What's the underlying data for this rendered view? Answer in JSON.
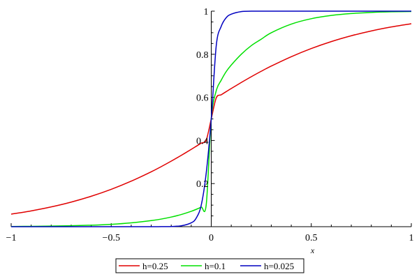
{
  "chart_data": {
    "type": "line",
    "title": "",
    "xlabel": "x",
    "ylabel": "",
    "xlim": [
      -1,
      1
    ],
    "ylim": [
      0,
      1
    ],
    "x_ticks": [
      {
        "value": -1,
        "label": "−1"
      },
      {
        "value": -0.5,
        "label": "−0.5"
      },
      {
        "value": 0,
        "label": "0"
      },
      {
        "value": 0.5,
        "label": "0.5"
      },
      {
        "value": 1,
        "label": "1"
      }
    ],
    "y_ticks": [
      {
        "value": 0.2,
        "label": "0.2"
      },
      {
        "value": 0.4,
        "label": "0.4"
      },
      {
        "value": 0.6,
        "label": "0.6"
      },
      {
        "value": 0.8,
        "label": "0.8"
      },
      {
        "value": 1,
        "label": "1"
      }
    ],
    "grid": false,
    "legend_position": "bottom-center",
    "x": [
      -1,
      -0.9,
      -0.8,
      -0.7,
      -0.6,
      -0.5,
      -0.4,
      -0.3,
      -0.25,
      -0.2,
      -0.15,
      -0.1,
      -0.075,
      -0.05,
      -0.025,
      0,
      0.025,
      0.05,
      0.075,
      0.1,
      0.15,
      0.2,
      0.25,
      0.3,
      0.4,
      0.5,
      0.6,
      0.7,
      0.8,
      0.9,
      1
    ],
    "series": [
      {
        "name": "h=0.25",
        "color": "#e00000",
        "values": [
          0.0582,
          0.0733,
          0.0917,
          0.1141,
          0.1411,
          0.1733,
          0.2112,
          0.2547,
          0.2788,
          0.3042,
          0.331,
          0.3588,
          0.3732,
          0.3878,
          0.4024,
          0.5,
          0.5976,
          0.6122,
          0.6268,
          0.6412,
          0.669,
          0.6958,
          0.7212,
          0.7453,
          0.7888,
          0.8267,
          0.8589,
          0.8859,
          0.9083,
          0.9267,
          0.9418
        ]
      },
      {
        "name": "h=0.1",
        "color": "#00e000",
        "values": [
          0.001,
          0.0017,
          0.0027,
          0.0044,
          0.007,
          0.0111,
          0.0178,
          0.0282,
          0.0354,
          0.0447,
          0.0565,
          0.0714,
          0.0805,
          0.0909,
          0.1027,
          0.5,
          0.631,
          0.68,
          0.72,
          0.75,
          0.8,
          0.84,
          0.87,
          0.9,
          0.94,
          0.965,
          0.98,
          0.989,
          0.994,
          0.997,
          0.9985
        ]
      },
      {
        "name": "h=0.025",
        "color": "#0000c0",
        "values": [
          0,
          0,
          0,
          0,
          0,
          0,
          0,
          0.0001,
          0.0003,
          0.001,
          0.004,
          0.018,
          0.04,
          0.1,
          0.25,
          0.5,
          0.84,
          0.93,
          0.97,
          0.986,
          0.998,
          0.9998,
          1,
          1,
          1,
          1,
          1,
          1,
          1,
          1,
          1
        ]
      }
    ]
  }
}
